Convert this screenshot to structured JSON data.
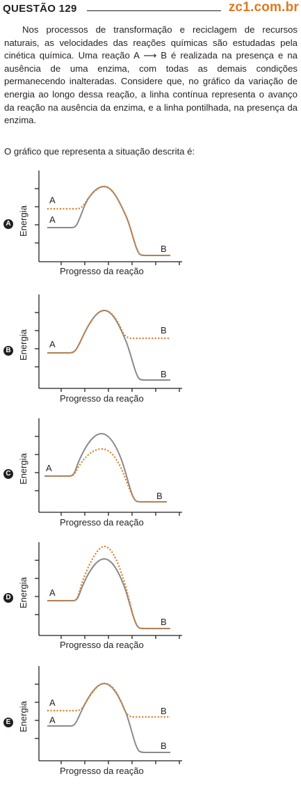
{
  "header": {
    "question": "QUESTÃO 129",
    "brand": "zc1.com.br"
  },
  "statement": "Nos processos de transformação e reciclagem de recursos naturais, as velocidades das reações químicas são estudadas pela cinética química. Uma reação A ⟶ B é realizada na presença e na ausência de uma enzima, com todas as demais condições permanecendo inalteradas. Considere que, no gráfico da variação de energia ao longo dessa reação, a linha contínua representa o avanço da reação na ausência da enzima, e a linha pontilhada, na presença da enzima.",
  "prompt": "O gráfico que representa a situação descrita é:",
  "options": [
    {
      "letter": "A",
      "ylabel": "Energia",
      "xlabel": "Progresso da reação",
      "start_label": "A",
      "end_label": "B"
    },
    {
      "letter": "B",
      "ylabel": "Energia",
      "xlabel": "Progresso da reação",
      "start_label": "A",
      "end_label": "B"
    },
    {
      "letter": "C",
      "ylabel": "Energia",
      "xlabel": "Progresso da reação",
      "start_label": "A",
      "end_label": "B"
    },
    {
      "letter": "D",
      "ylabel": "Energia",
      "xlabel": "Progresso da reação",
      "start_label": "A",
      "end_label": "B"
    },
    {
      "letter": "E",
      "ylabel": "Energia",
      "xlabel": "Progresso da reação",
      "start_label": "A",
      "end_label": "B"
    }
  ],
  "colors": {
    "solid": "#8a8a8a",
    "dotted": "#e0781e",
    "axis": "#231f20"
  }
}
